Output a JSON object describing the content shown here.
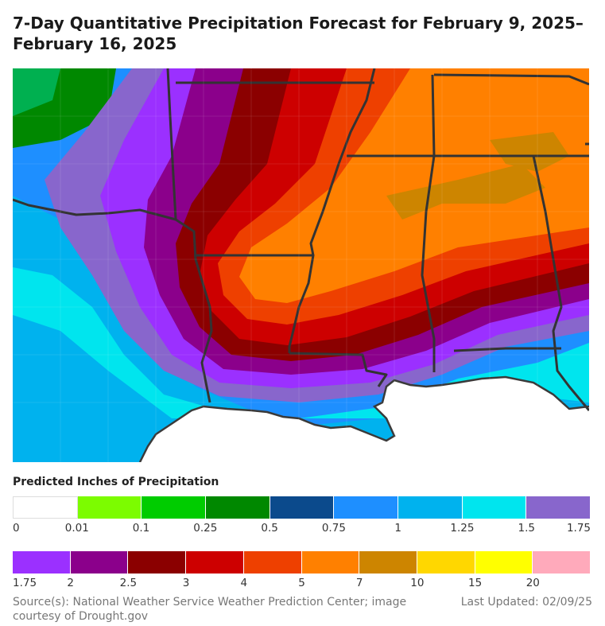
{
  "title": "7-Day Quantitative Precipitation Forecast for February 9, 2025–February 16, 2025",
  "legend": {
    "title": "Predicted Inches of Precipitation",
    "row1": {
      "colors": [
        "#ffffff",
        "#7cfc00",
        "#00cc00",
        "#008800",
        "#0b4a8c",
        "#1e8fff",
        "#00b2ee",
        "#00e5ee",
        "#8866cc"
      ],
      "labels": [
        "0",
        "0.01",
        "0.1",
        "0.25",
        "0.5",
        "0.75",
        "1",
        "1.25",
        "1.5",
        "1.75"
      ]
    },
    "row2": {
      "colors": [
        "#9b30ff",
        "#8b008b",
        "#8b0000",
        "#cd0000",
        "#ee4000",
        "#ff8000",
        "#cd8500",
        "#ffd700",
        "#ffff00",
        "#ffaabb"
      ],
      "labels": [
        "1.75",
        "2",
        "2.5",
        "3",
        "4",
        "5",
        "7",
        "10",
        "15",
        "20"
      ]
    }
  },
  "source": "Source(s): National Weather Service Weather Prediction Center; image courtesy of Drought.gov",
  "updated": "Last Updated: 02/09/25"
}
